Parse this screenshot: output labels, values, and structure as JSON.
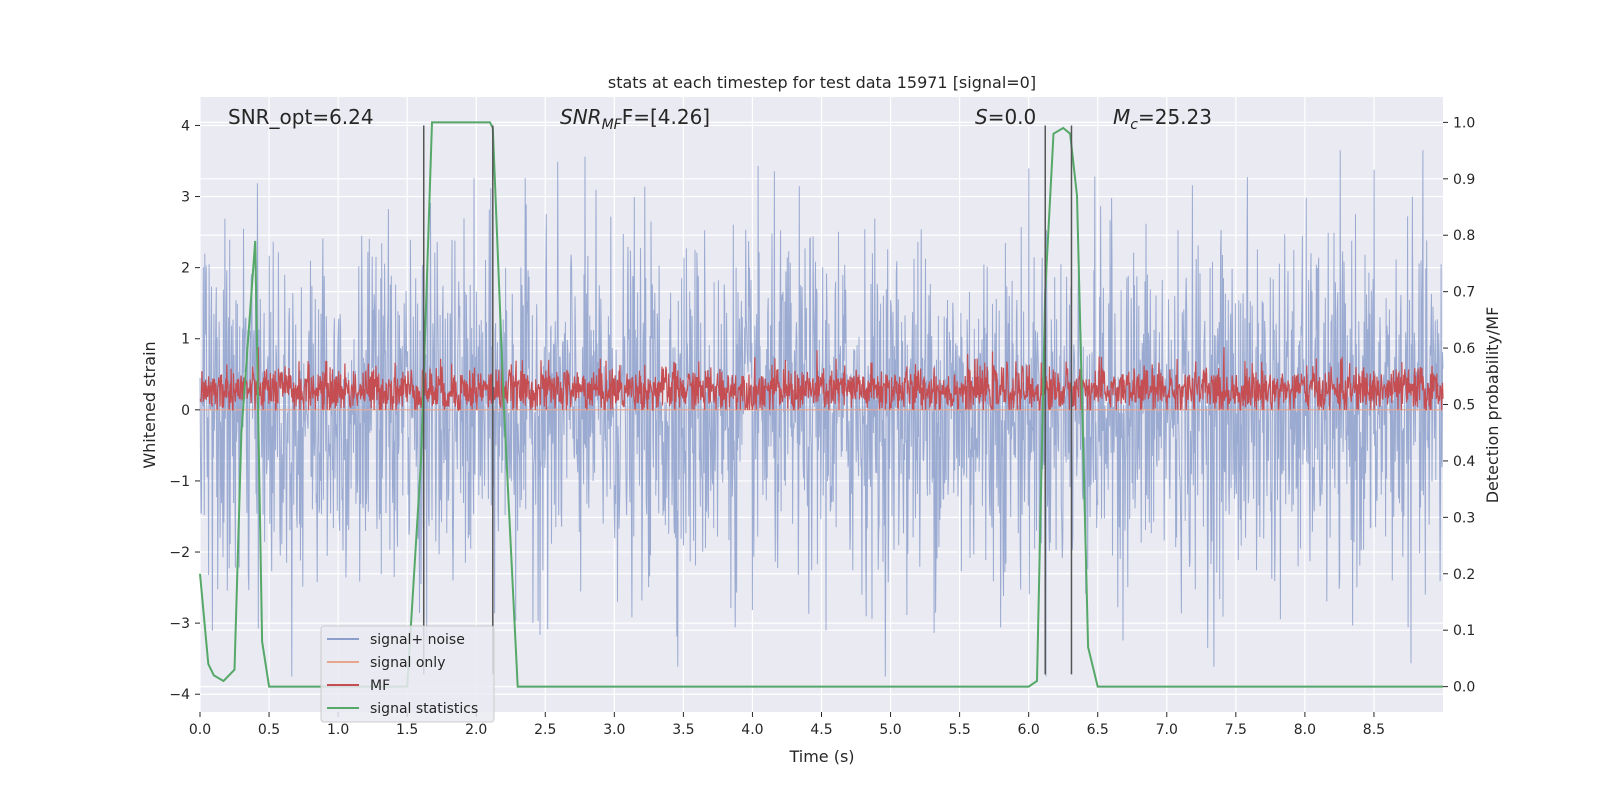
{
  "chart_data": {
    "type": "line",
    "title": "stats at each timestep for test data 15971 [signal=0]",
    "xlabel": "Time (s)",
    "ylabel": "Whitened strain",
    "ylabel_right": "Detection probability/MF",
    "xlim": [
      0,
      9.0
    ],
    "ylim": [
      -4.25,
      4.4
    ],
    "ylim_right": [
      -0.045,
      1.045
    ],
    "x_ticks": [
      0.0,
      0.5,
      1.0,
      1.5,
      2.0,
      2.5,
      3.0,
      3.5,
      4.0,
      4.5,
      5.0,
      5.5,
      6.0,
      6.5,
      7.0,
      7.5,
      8.0,
      8.5
    ],
    "x_tick_labels": [
      "0.0",
      "0.5",
      "1.0",
      "1.5",
      "2.0",
      "2.5",
      "3.0",
      "3.5",
      "4.0",
      "4.5",
      "5.0",
      "5.5",
      "6.0",
      "6.5",
      "7.0",
      "7.5",
      "8.0",
      "8.5"
    ],
    "y_ticks": [
      4,
      3,
      2,
      1,
      0,
      -1,
      -2,
      -3,
      -4
    ],
    "y_tick_labels": [
      "4",
      "3",
      "2",
      "1",
      "0",
      "−1",
      "−2",
      "−3",
      "−4"
    ],
    "y_right_ticks": [
      1.0,
      0.9,
      0.8,
      0.7,
      0.6,
      0.5,
      0.4,
      0.3,
      0.2,
      0.1,
      0.0
    ],
    "y_right_tick_labels": [
      "1.0",
      "0.9",
      "0.8",
      "0.7",
      "0.6",
      "0.5",
      "0.4",
      "0.3",
      "0.2",
      "0.1",
      "0.0"
    ],
    "annotations": {
      "snr_opt": "SNR_opt=6.24",
      "snr_mf_main": "SNR",
      "snr_mf_sub": "MF",
      "snr_mf_rest": "F=[4.26]",
      "s_main": "S",
      "s_rest": "=0.0",
      "mc_main": "M",
      "mc_sub": "c",
      "mc_rest": "=25.23"
    },
    "vertical_lines": [
      1.62,
      2.12,
      6.12,
      6.31
    ],
    "vertical_line_ylim": [
      -3.72,
      4.0
    ],
    "series": [
      {
        "name": "signal+ noise",
        "color": "#8c9fcb",
        "axis": "left",
        "style": "dense noise, amplitude about ±4 whitened strain over the full 0–9 s range"
      },
      {
        "name": "signal only",
        "color": "#e8a58c",
        "axis": "left",
        "style": "essentially zero (no injected signal)"
      },
      {
        "name": "MF",
        "color": "#c44e52",
        "axis": "left",
        "style": "dense noise between 0.0 and about 0.9 whitened strain"
      },
      {
        "name": "signal statistics",
        "color": "#55a868",
        "axis": "right",
        "x": [
          0.0,
          0.06,
          0.1,
          0.17,
          0.25,
          0.3,
          0.4,
          0.45,
          0.5,
          0.6,
          1.0,
          1.5,
          1.6,
          1.68,
          1.72,
          2.1,
          2.12,
          2.2,
          2.3,
          2.5,
          3.0,
          4.0,
          5.0,
          6.0,
          6.06,
          6.12,
          6.18,
          6.25,
          6.3,
          6.35,
          6.43,
          6.5,
          7.0,
          8.0,
          9.0
        ],
        "y": [
          0.2,
          0.04,
          0.02,
          0.01,
          0.03,
          0.45,
          0.79,
          0.08,
          0.0,
          0.0,
          0.0,
          0.0,
          0.4,
          1.0,
          1.0,
          1.0,
          0.99,
          0.5,
          0.0,
          0.0,
          0.0,
          0.0,
          0.0,
          0.0,
          0.01,
          0.7,
          0.98,
          0.99,
          0.98,
          0.87,
          0.07,
          0.0,
          0.0,
          0.0,
          0.0
        ]
      }
    ],
    "legend_position": "lower-left"
  }
}
